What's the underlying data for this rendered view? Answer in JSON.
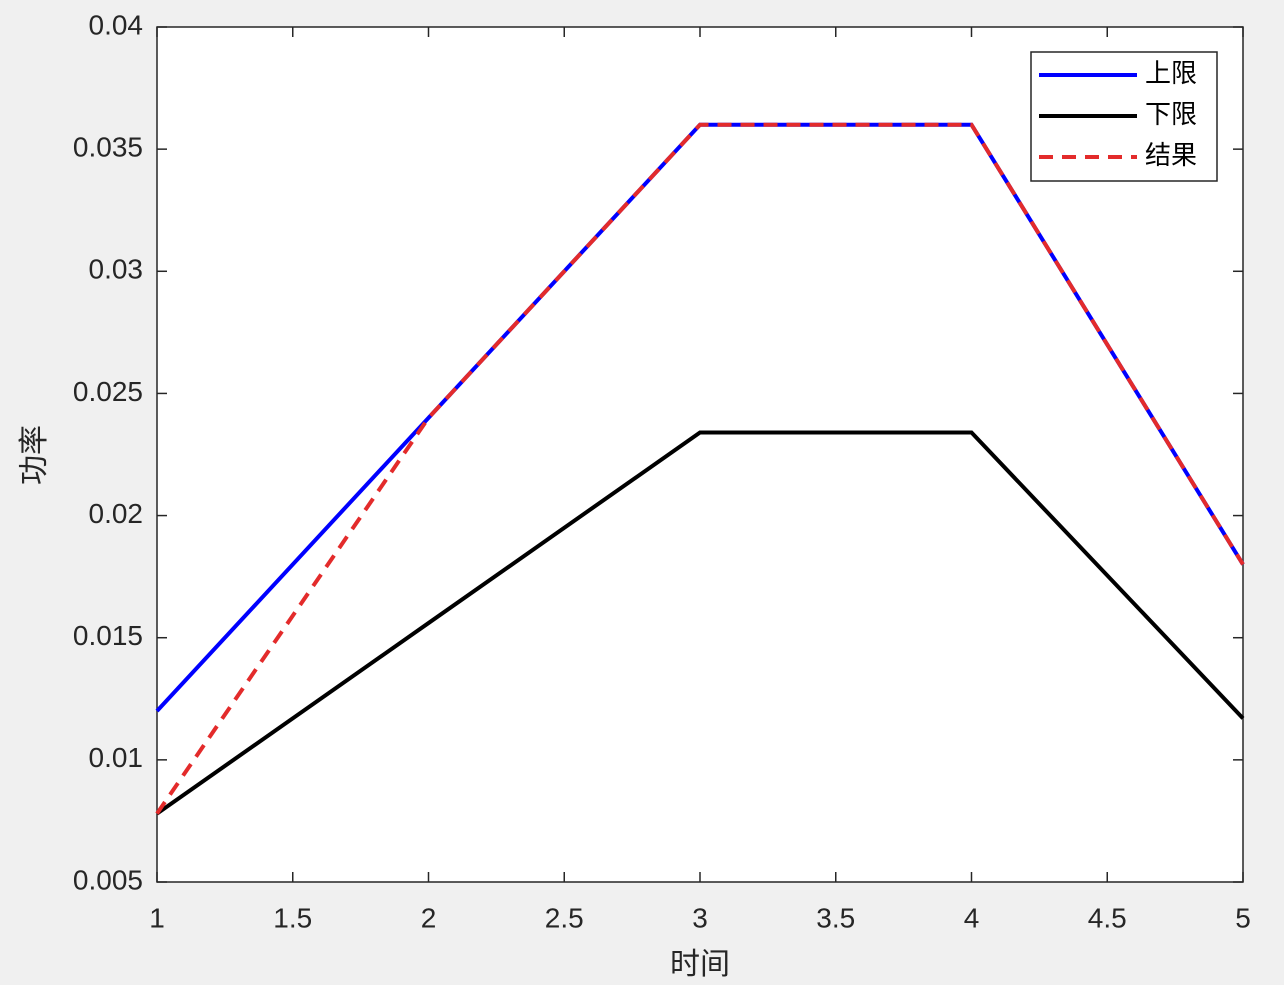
{
  "chart_data": {
    "type": "line",
    "x": [
      1,
      2,
      3,
      4,
      5
    ],
    "series": [
      {
        "name": "上限",
        "color": "#0000ff",
        "linestyle": "solid",
        "values": [
          0.012,
          0.024,
          0.036,
          0.036,
          0.018
        ]
      },
      {
        "name": "下限",
        "color": "#000000",
        "linestyle": "solid",
        "values": [
          0.0078,
          0.0156,
          0.0234,
          0.0234,
          0.0117
        ]
      },
      {
        "name": "结果",
        "color": "#e32b2b",
        "linestyle": "dashed",
        "values": [
          0.0078,
          0.024,
          0.036,
          0.036,
          0.018
        ]
      }
    ],
    "xlabel": "时间",
    "ylabel": "功率",
    "xlim": [
      1,
      5
    ],
    "xticks": [
      1,
      1.5,
      2,
      2.5,
      3,
      3.5,
      4,
      4.5,
      5
    ],
    "ylim": [
      0.005,
      0.04
    ],
    "yticks": [
      0.005,
      0.01,
      0.015,
      0.02,
      0.025,
      0.03,
      0.035,
      0.04
    ],
    "grid": false,
    "legend": "northeast"
  }
}
